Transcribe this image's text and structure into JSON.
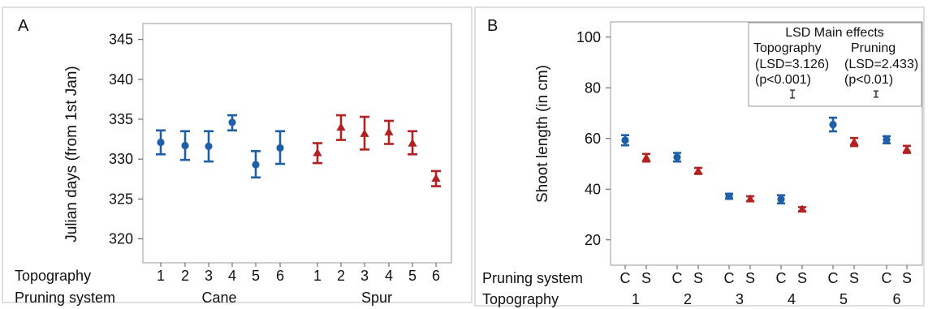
{
  "chart_data": [
    {
      "type": "scatter",
      "panel_label": "A",
      "ylabel": "Julian days (from 1st Jan)",
      "ylim": [
        317,
        347
      ],
      "y_ticks": [
        320,
        325,
        330,
        335,
        340,
        345
      ],
      "grid": false,
      "row_labels": [
        "Topography",
        "Pruning system"
      ],
      "group_labels": [
        "Cane",
        "Spur"
      ],
      "category_labels": [
        "1",
        "2",
        "3",
        "4",
        "5",
        "6",
        "1",
        "2",
        "3",
        "4",
        "5",
        "6"
      ],
      "series": [
        {
          "group": "Cane",
          "marker": "circle",
          "color": "#1f5fa8",
          "values": [
            332.1,
            331.7,
            331.6,
            334.6,
            329.3,
            331.4
          ],
          "lower": [
            330.6,
            329.9,
            329.7,
            333.6,
            327.7,
            329.4
          ],
          "upper": [
            333.6,
            333.5,
            333.5,
            335.5,
            331.0,
            333.5
          ]
        },
        {
          "group": "Spur",
          "marker": "triangle",
          "color": "#b22222",
          "values": [
            330.8,
            334.0,
            333.2,
            333.4,
            332.0,
            327.6
          ],
          "lower": [
            329.5,
            332.4,
            331.2,
            331.9,
            330.6,
            326.6
          ],
          "upper": [
            332.0,
            335.5,
            335.3,
            334.8,
            333.5,
            328.5
          ]
        }
      ]
    },
    {
      "type": "scatter",
      "panel_label": "B",
      "ylabel": "Shoot length (in cm)",
      "ylim": [
        10,
        106
      ],
      "y_ticks": [
        20,
        40,
        60,
        80,
        100
      ],
      "grid": false,
      "row_labels": [
        "Pruning system",
        "Topography"
      ],
      "pruning_labels": [
        "C",
        "S"
      ],
      "topography_labels": [
        "1",
        "2",
        "3",
        "4",
        "5",
        "6"
      ],
      "series": [
        {
          "name": "C",
          "marker": "circle",
          "color": "#1f5fa8",
          "values": [
            59.3,
            52.6,
            37.2,
            36.0,
            65.5,
            59.5
          ],
          "lower": [
            57.3,
            50.9,
            36.2,
            34.4,
            62.8,
            58.1
          ],
          "upper": [
            61.3,
            54.3,
            38.2,
            37.6,
            68.2,
            60.9
          ]
        },
        {
          "name": "S",
          "marker": "triangle",
          "color": "#b22222",
          "values": [
            52.4,
            47.2,
            36.2,
            32.1,
            58.6,
            55.7
          ],
          "lower": [
            50.9,
            46.0,
            35.2,
            31.3,
            57.0,
            54.3
          ],
          "upper": [
            53.9,
            48.4,
            37.2,
            32.9,
            60.2,
            57.1
          ]
        }
      ],
      "lsd_box": {
        "title": "LSD Main effects",
        "topography": {
          "label": "Topography",
          "lsd": "(LSD=3.126)",
          "p": "(p<0.001)",
          "value": 3.126
        },
        "pruning": {
          "label": "Pruning",
          "lsd": "(LSD=2.433)",
          "p": "(p<0.01)",
          "value": 2.433
        }
      }
    }
  ]
}
